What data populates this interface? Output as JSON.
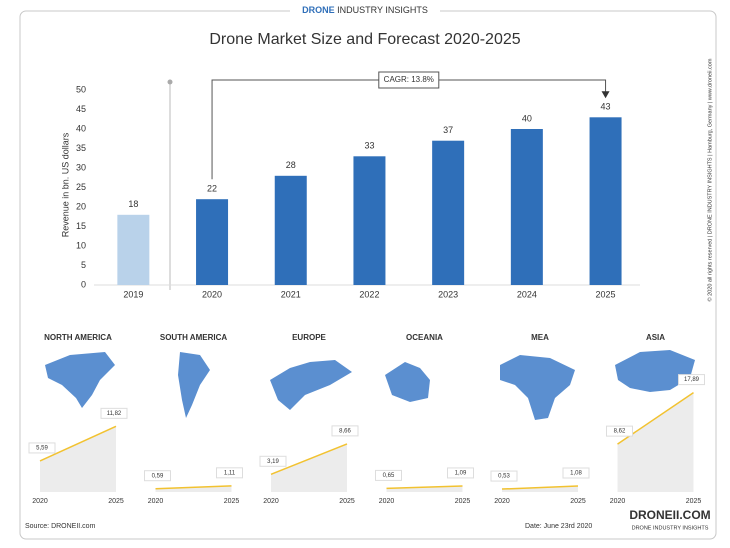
{
  "header": {
    "brand": "DRONE",
    "sub": "INDUSTRY INSIGHTS"
  },
  "side_note": "© 2020 all rights reserved | DRONE INDUSTRY INSIGHTS | Hamburg, Germany | www.droneii.com",
  "footer": {
    "source": "Source: DRONEII.com",
    "date": "Date: June 23rd 2020",
    "logo": "DRONEII.COM",
    "logo_sub": "DRONE INDUSTRY INSIGHTS"
  },
  "chart_data": [
    {
      "type": "bar",
      "title": "Drone Market Size and Forecast 2020-2025",
      "y_label": "Revenue in bn. US dollars",
      "categories": [
        "2019",
        "2020",
        "2021",
        "2022",
        "2023",
        "2024",
        "2025"
      ],
      "values": [
        18,
        22,
        28,
        33,
        37,
        40,
        43
      ],
      "colors": [
        "#b9d2ea",
        "#2f6fb9",
        "#2f6fb9",
        "#2f6fb9",
        "#2f6fb9",
        "#2f6fb9",
        "#2f6fb9"
      ],
      "ylim": [
        0,
        50
      ],
      "yticks": [
        0,
        5,
        10,
        15,
        20,
        25,
        30,
        35,
        40,
        45,
        50
      ],
      "grid": false,
      "annotation": "CAGR: 13.8%"
    },
    {
      "type": "line",
      "title": "NORTH AMERICA",
      "x": [
        "2020",
        "2025"
      ],
      "values": [
        5.59,
        11.82
      ],
      "value_labels": [
        "5,59",
        "11,82"
      ],
      "color": "#f2c230",
      "ylim": [
        0,
        18
      ]
    },
    {
      "type": "line",
      "title": "SOUTH AMERICA",
      "x": [
        "2020",
        "2025"
      ],
      "values": [
        0.59,
        1.11
      ],
      "value_labels": [
        "0,59",
        "1,11"
      ],
      "color": "#f2c230",
      "ylim": [
        0,
        18
      ]
    },
    {
      "type": "line",
      "title": "EUROPE",
      "x": [
        "2020",
        "2025"
      ],
      "values": [
        3.19,
        8.66
      ],
      "value_labels": [
        "3,19",
        "8,66"
      ],
      "color": "#f2c230",
      "ylim": [
        0,
        18
      ]
    },
    {
      "type": "line",
      "title": "OCEANIA",
      "x": [
        "2020",
        "2025"
      ],
      "values": [
        0.65,
        1.09
      ],
      "value_labels": [
        "0,65",
        "1,09"
      ],
      "color": "#f2c230",
      "ylim": [
        0,
        18
      ]
    },
    {
      "type": "line",
      "title": "MEA",
      "x": [
        "2020",
        "2025"
      ],
      "values": [
        0.53,
        1.08
      ],
      "value_labels": [
        "0,53",
        "1,08"
      ],
      "color": "#f2c230",
      "ylim": [
        0,
        18
      ]
    },
    {
      "type": "line",
      "title": "ASIA",
      "x": [
        "2020",
        "2025"
      ],
      "values": [
        8.62,
        17.89
      ],
      "value_labels": [
        "8,62",
        "17,89"
      ],
      "color": "#f2c230",
      "ylim": [
        0,
        18
      ]
    }
  ]
}
